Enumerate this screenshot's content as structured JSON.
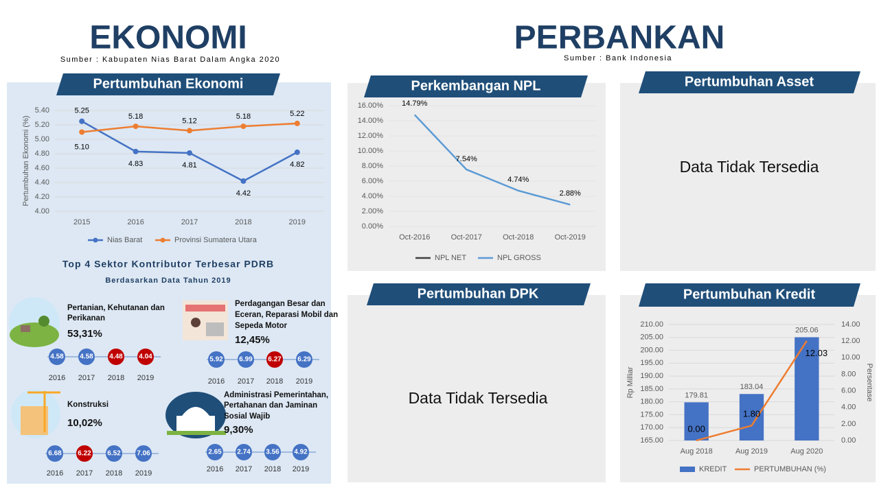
{
  "header": {
    "left_title": "EKONOMI",
    "left_source": "Sumber : Kabupaten Nias Barat Dalam Angka 2020",
    "right_title": "PERBANKAN",
    "right_source": "Sumber : Bank Indonesia"
  },
  "panels": {
    "asset": {
      "title": "Pertumbuhan Asset",
      "message": "Data Tidak Tersedia"
    },
    "dpk": {
      "title": "Pertumbuhan DPK",
      "message": "Data Tidak Tersedia"
    }
  },
  "chart_data": [
    {
      "type": "line",
      "title": "Pertumbuhan Ekonomi",
      "y_label": "Pertumbuhan Ekonomi (%)",
      "categories": [
        2015,
        2016,
        2017,
        2018,
        2019
      ],
      "series": [
        {
          "name": "Nias Barat",
          "color": "#4472c4",
          "values": [
            5.25,
            4.83,
            4.81,
            4.42,
            4.82
          ],
          "value_labels": [
            "5.25",
            "4.83",
            "4.81",
            "4.42",
            "4.82"
          ]
        },
        {
          "name": "Provinsi Sumatera Utara",
          "color": "#ed7d31",
          "values": [
            5.1,
            5.18,
            5.12,
            5.18,
            5.22
          ],
          "value_labels": [
            "5.10",
            "5.18",
            "5.12",
            "5.18",
            "5.22"
          ]
        }
      ],
      "ylim": [
        4.0,
        5.4
      ],
      "yticks": [
        {
          "value": 4.0,
          "label": "4.00"
        },
        {
          "value": 4.2,
          "label": "4.20"
        },
        {
          "value": 4.4,
          "label": "4.40"
        },
        {
          "value": 4.6,
          "label": "4.60"
        },
        {
          "value": 4.8,
          "label": "4.80"
        },
        {
          "value": 5.0,
          "label": "5.00"
        },
        {
          "value": 5.2,
          "label": "5.20"
        },
        {
          "value": 5.4,
          "label": "5.40"
        }
      ],
      "grid": true,
      "legend": "bottom"
    },
    {
      "type": "line",
      "title": "Perkembangan NPL",
      "categories": [
        "Oct-2016",
        "Oct-2017",
        "Oct-2018",
        "Oct-2019"
      ],
      "series": [
        {
          "name": "NPL NET",
          "color": "#404040",
          "values": [
            null,
            null,
            null,
            null
          ]
        },
        {
          "name": "NPL GROSS",
          "color": "#5b9bd5",
          "values": [
            14.79,
            7.54,
            4.74,
            2.88
          ],
          "value_labels": [
            "14.79%",
            "7.54%",
            "4.74%",
            "2.88%"
          ]
        }
      ],
      "ylim": [
        0,
        16
      ],
      "yticks": [
        {
          "value": 0,
          "label": "0.00%"
        },
        {
          "value": 2,
          "label": "2.00%"
        },
        {
          "value": 4,
          "label": "4.00%"
        },
        {
          "value": 6,
          "label": "6.00%"
        },
        {
          "value": 8,
          "label": "8.00%"
        },
        {
          "value": 10,
          "label": "10.00%"
        },
        {
          "value": 12,
          "label": "12.00%"
        },
        {
          "value": 14,
          "label": "14.00%"
        },
        {
          "value": 16,
          "label": "16.00%"
        }
      ],
      "grid": true,
      "legend": "bottom"
    },
    {
      "type": "bar",
      "title": "Pertumbuhan Kredit",
      "y_label": "Rp Milliar",
      "y2_label": "Persentase",
      "categories": [
        "Aug 2018",
        "Aug 2019",
        "Aug 2020"
      ],
      "series": [
        {
          "name": "KREDIT",
          "type": "bar",
          "color": "#4472c4",
          "values": [
            179.81,
            183.04,
            205.06
          ]
        },
        {
          "name": "PERTUMBUHAN (%)",
          "type": "line",
          "axis": "y2",
          "color": "#ed7d31",
          "values": [
            0.0,
            1.8,
            12.03
          ],
          "value_labels": [
            "0.00",
            "1.80",
            "12.03"
          ]
        }
      ],
      "ylim": [
        165,
        210
      ],
      "yticks": [
        {
          "value": 165,
          "label": "165.00"
        },
        {
          "value": 170,
          "label": "170.00"
        },
        {
          "value": 175,
          "label": "175.00"
        },
        {
          "value": 180,
          "label": "180.00"
        },
        {
          "value": 185,
          "label": "185.00"
        },
        {
          "value": 190,
          "label": "190.00"
        },
        {
          "value": 195,
          "label": "195.00"
        },
        {
          "value": 200,
          "label": "200.00"
        },
        {
          "value": 205,
          "label": "205.00"
        },
        {
          "value": 210,
          "label": "210.00"
        }
      ],
      "y2lim": [
        0,
        14
      ],
      "y2ticks": [
        {
          "value": 0,
          "label": "0.00"
        },
        {
          "value": 2,
          "label": "2.00"
        },
        {
          "value": 4,
          "label": "4.00"
        },
        {
          "value": 6,
          "label": "6.00"
        },
        {
          "value": 8,
          "label": "8.00"
        },
        {
          "value": 10,
          "label": "10.00"
        },
        {
          "value": 12,
          "label": "12.00"
        },
        {
          "value": 14,
          "label": "14.00"
        }
      ],
      "grid": true,
      "legend": "bottom"
    }
  ],
  "sectors": {
    "title": "Top 4 Sektor Kontributor Terbesar PDRB",
    "subtitle": "Berdasarkan Data Tahun 2019",
    "colors": {
      "up": "#4472c4",
      "down": "#c00000"
    },
    "items": [
      {
        "name_lines": [
          "Pertanian, Kehutanan dan",
          "Perikanan"
        ],
        "share": "53,31%",
        "years": [
          2016,
          2017,
          2018,
          2019
        ],
        "values": [
          4.58,
          4.58,
          4.48,
          4.04
        ]
      },
      {
        "name_lines": [
          "Perdagangan Besar dan",
          "Eceran, Reparasi Mobil dan",
          "Sepeda Motor"
        ],
        "share": "12,45%",
        "years": [
          2016,
          2017,
          2018,
          2019
        ],
        "values": [
          5.92,
          6.99,
          6.27,
          6.29
        ]
      },
      {
        "name_lines": [
          "Konstruksi"
        ],
        "share": "10,02%",
        "years": [
          2016,
          2017,
          2018,
          2019
        ],
        "values": [
          6.68,
          6.22,
          6.52,
          7.06
        ]
      },
      {
        "name_lines": [
          "Administrasi Pemerintahan,",
          "Pertahanan dan Jaminan",
          "Sosial Wajib"
        ],
        "share": "9,30%",
        "years": [
          2016,
          2017,
          2018,
          2019
        ],
        "values": [
          2.65,
          2.74,
          3.56,
          4.92
        ]
      }
    ]
  }
}
